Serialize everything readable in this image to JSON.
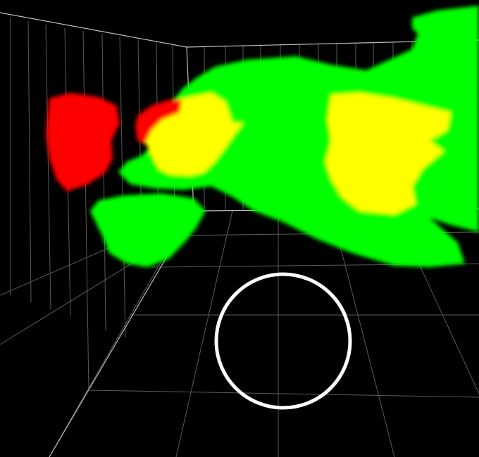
{
  "scene": {
    "description_visible_text": "",
    "background": "#000000",
    "grid_color": "#5a5a5a",
    "frame_color": "#bdbdbd",
    "colors": {
      "low": "#00ff00",
      "medium": "#ffff00",
      "high": "#ff0000",
      "marker": "#ffffff"
    },
    "marker": {
      "shape": "circle-outline"
    }
  }
}
